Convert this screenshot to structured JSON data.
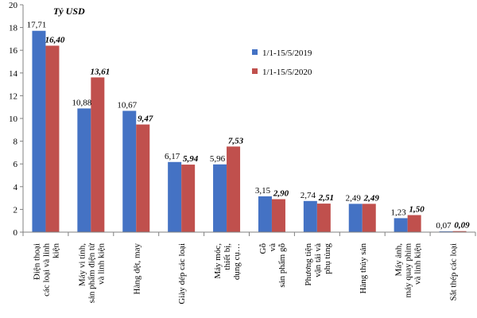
{
  "chart_data": {
    "type": "bar",
    "unit_label": "Tỷ USD",
    "ylim": [
      0,
      20
    ],
    "yticks": [
      "0",
      "2",
      "4",
      "6",
      "8",
      "10",
      "12",
      "14",
      "16",
      "18",
      "20"
    ],
    "legend_position": "right",
    "categories": [
      [
        "Điện thoại",
        "các loại và linh",
        "kiện"
      ],
      [
        "Máy vi tính,",
        "sản phẩm điện tử",
        "và linh kiện"
      ],
      [
        "Hàng dệt, may"
      ],
      [
        "Giày dép các loại"
      ],
      [
        "Máy móc,",
        "thiết bị,",
        "dụng cụ…"
      ],
      [
        "Gỗ",
        "và",
        "sản phẩm gỗ"
      ],
      [
        "Phương tiện",
        "vận tải và",
        "phụ tùng"
      ],
      [
        "Hàng thủy sản"
      ],
      [
        "Máy ảnh,",
        "máy quay phim",
        "và linh kiện"
      ],
      [
        "Sắt thép các loại"
      ]
    ],
    "series": [
      {
        "name": "1/1-15/5/2019",
        "color": "#4472C4",
        "values": [
          17.71,
          10.88,
          10.67,
          6.17,
          5.96,
          3.15,
          2.74,
          2.49,
          1.23,
          0.07
        ],
        "labels": [
          "17,71",
          "10,88",
          "10,67",
          "6,17",
          "5,96",
          "3,15",
          "2,74",
          "2,49",
          "1,23",
          "0,07"
        ]
      },
      {
        "name": "1/1-15/5/2020",
        "color": "#C0504D",
        "values": [
          16.4,
          13.61,
          9.47,
          5.94,
          7.53,
          2.9,
          2.51,
          2.49,
          1.5,
          0.09
        ],
        "labels": [
          "16,40",
          "13,61",
          "9,47",
          "5,94",
          "7,53",
          "2,90",
          "2,51",
          "2,49",
          "1,50",
          "0,09"
        ]
      }
    ]
  }
}
